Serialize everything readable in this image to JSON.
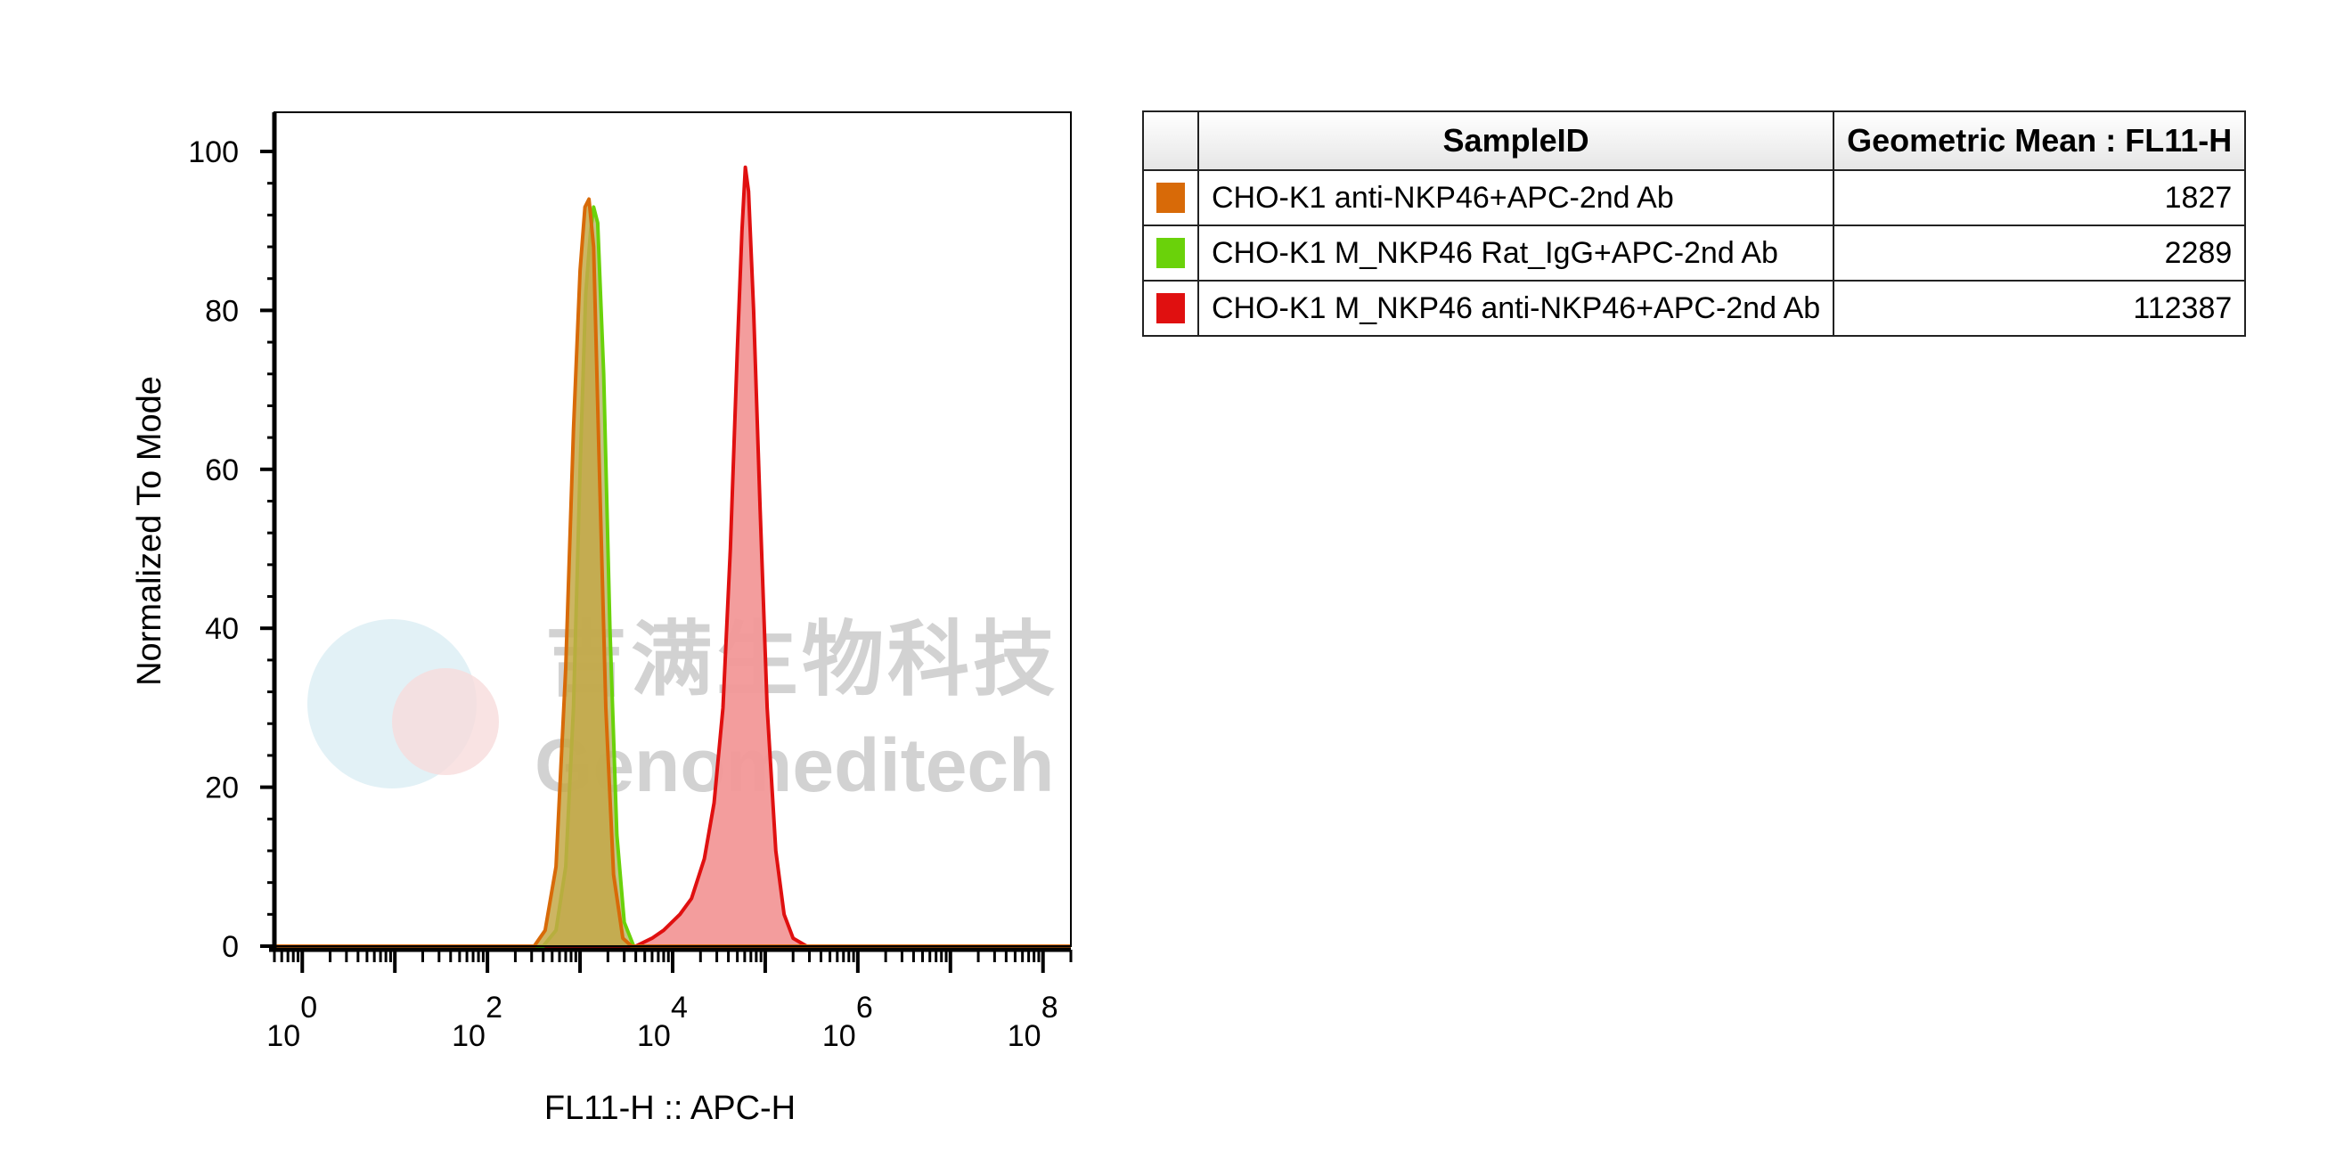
{
  "chart_data": {
    "type": "area",
    "xlabel": "FL11-H :: APC-H",
    "ylabel": "Normalized To Mode",
    "x_scale": "log",
    "xlim": [
      0.5,
      200000000
    ],
    "ylim": [
      0,
      100
    ],
    "x_ticks": [
      {
        "base": "10",
        "exp": "0",
        "value": 1
      },
      {
        "base": "10",
        "exp": "2",
        "value": 100
      },
      {
        "base": "10",
        "exp": "4",
        "value": 10000
      },
      {
        "base": "10",
        "exp": "6",
        "value": 1000000
      },
      {
        "base": "10",
        "exp": "8",
        "value": 100000000
      }
    ],
    "y_ticks": [
      "0",
      "20",
      "40",
      "60",
      "80",
      "100"
    ],
    "grid": false,
    "series": [
      {
        "name": "CHO-K1 M_NKP46 anti-NKP46+APC-2nd Ab",
        "color": "#e01010",
        "fill": "#f29898",
        "points": [
          [
            4000,
            0
          ],
          [
            6000,
            1
          ],
          [
            8000,
            2
          ],
          [
            12000,
            4
          ],
          [
            16000,
            6
          ],
          [
            22000,
            11
          ],
          [
            28000,
            18
          ],
          [
            35000,
            30
          ],
          [
            42000,
            50
          ],
          [
            50000,
            75
          ],
          [
            56000,
            90
          ],
          [
            61000,
            98
          ],
          [
            66000,
            95
          ],
          [
            75000,
            80
          ],
          [
            88000,
            55
          ],
          [
            105000,
            30
          ],
          [
            130000,
            12
          ],
          [
            160000,
            4
          ],
          [
            200000,
            1
          ],
          [
            280000,
            0
          ]
        ]
      },
      {
        "name": "CHO-K1 M_NKP46 Rat_IgG+APC-2nd Ab",
        "color": "#6ad20a",
        "fill": "#b8b870",
        "points": [
          [
            400,
            0
          ],
          [
            550,
            2
          ],
          [
            700,
            10
          ],
          [
            850,
            30
          ],
          [
            1000,
            60
          ],
          [
            1150,
            82
          ],
          [
            1300,
            90
          ],
          [
            1400,
            93
          ],
          [
            1550,
            91
          ],
          [
            1800,
            72
          ],
          [
            2100,
            40
          ],
          [
            2500,
            14
          ],
          [
            3000,
            3
          ],
          [
            3800,
            0
          ]
        ]
      },
      {
        "name": "CHO-K1 anti-NKP46+APC-2nd Ab",
        "color": "#d86a08",
        "fill": "#c4a848",
        "points": [
          [
            320,
            0
          ],
          [
            420,
            2
          ],
          [
            550,
            10
          ],
          [
            700,
            35
          ],
          [
            850,
            65
          ],
          [
            1000,
            85
          ],
          [
            1130,
            93
          ],
          [
            1250,
            94
          ],
          [
            1400,
            88
          ],
          [
            1600,
            62
          ],
          [
            1900,
            30
          ],
          [
            2300,
            9
          ],
          [
            2900,
            1
          ],
          [
            3600,
            0
          ]
        ]
      }
    ]
  },
  "watermark": {
    "chinese": "吉满生物科技",
    "english": "Genomeditech"
  },
  "legend_table": {
    "headers": [
      "SampleID",
      "Geometric Mean : FL11-H"
    ],
    "rows": [
      {
        "color": "#d86a08",
        "sample": "CHO-K1 anti-NKP46+APC-2nd Ab",
        "value": "1827"
      },
      {
        "color": "#6ad20a",
        "sample": "CHO-K1 M_NKP46 Rat_IgG+APC-2nd Ab",
        "value": "2289"
      },
      {
        "color": "#e01010",
        "sample": "CHO-K1 M_NKP46 anti-NKP46+APC-2nd Ab",
        "value": "112387"
      }
    ]
  }
}
